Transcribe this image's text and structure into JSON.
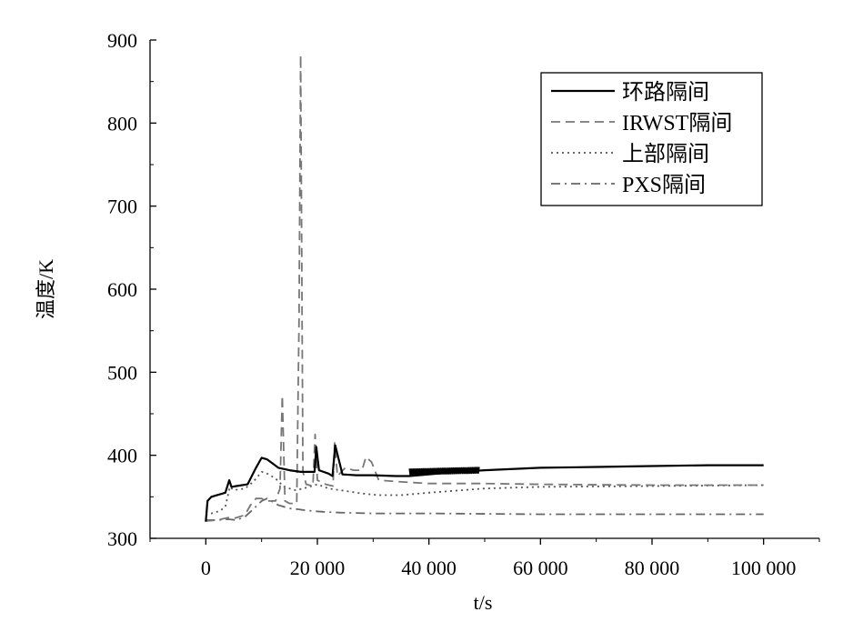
{
  "chart_data": {
    "type": "line",
    "title": "",
    "xlabel": "t/s",
    "ylabel": "温度/K",
    "xlim": [
      -10000,
      110000
    ],
    "ylim": [
      300,
      900
    ],
    "xticks": [
      0,
      20000,
      40000,
      60000,
      80000,
      100000
    ],
    "xtick_labels": [
      "0",
      "20 000",
      "40 000",
      "60 000",
      "80 000",
      "100 000"
    ],
    "yticks": [
      300,
      400,
      500,
      600,
      700,
      800,
      900
    ],
    "ytick_labels": [
      "300",
      "400",
      "500",
      "600",
      "700",
      "800",
      "900"
    ],
    "legend_position": "top-right",
    "grid": false,
    "series": [
      {
        "name": "环路隔间",
        "style": "solid",
        "color": "#000000",
        "x": [
          0,
          300,
          1000,
          3500,
          4200,
          4600,
          5500,
          7500,
          9000,
          10000,
          11000,
          13000,
          15000,
          16000,
          17000,
          19500,
          19800,
          20300,
          22000,
          22700,
          23200,
          24500,
          27000,
          30000,
          34000,
          36500,
          40000,
          45000,
          50000,
          60000,
          70000,
          80000,
          90000,
          100000
        ],
        "y": [
          320,
          345,
          350,
          355,
          370,
          362,
          363,
          365,
          385,
          397,
          395,
          385,
          382,
          381,
          380,
          380,
          410,
          382,
          378,
          375,
          412,
          377,
          376,
          376,
          375,
          375,
          377,
          380,
          382,
          385,
          386,
          387,
          388,
          388
        ]
      },
      {
        "name": "IRWST隔间",
        "style": "dashed",
        "color": "#777777",
        "x": [
          0,
          2000,
          4000,
          5000,
          7000,
          8000,
          9000,
          10000,
          11000,
          12500,
          13300,
          13700,
          14200,
          15000,
          16300,
          16700,
          17000,
          17400,
          18000,
          19200,
          19600,
          20000,
          21500,
          22800,
          23100,
          23600,
          25000,
          26500,
          28000,
          28700,
          29700,
          31000,
          35000,
          40000,
          50000,
          60000,
          80000,
          100000
        ],
        "y": [
          322,
          322,
          325,
          324,
          328,
          340,
          348,
          348,
          345,
          345,
          360,
          472,
          345,
          342,
          342,
          560,
          882,
          380,
          365,
          363,
          425,
          370,
          365,
          363,
          415,
          375,
          385,
          382,
          382,
          398,
          392,
          370,
          368,
          366,
          366,
          365,
          364,
          364
        ]
      },
      {
        "name": "上部隔间",
        "style": "dotted",
        "color": "#555555",
        "x": [
          0,
          1000,
          2500,
          3500,
          4300,
          5000,
          7000,
          8500,
          10000,
          11000,
          12500,
          14000,
          16000,
          17500,
          18500,
          20000,
          22000,
          25000,
          28000,
          31000,
          35000,
          40000,
          50000,
          60000,
          80000,
          100000
        ],
        "y": [
          328,
          330,
          333,
          338,
          362,
          358,
          360,
          368,
          380,
          378,
          372,
          362,
          358,
          360,
          362,
          365,
          360,
          357,
          354,
          352,
          352,
          355,
          360,
          362,
          363,
          364
        ]
      },
      {
        "name": "PXS隔间",
        "style": "dashdot",
        "color": "#666666",
        "x": [
          0,
          2000,
          4000,
          5500,
          7000,
          8500,
          10000,
          11000,
          12000,
          13000,
          14000,
          15000,
          16500,
          17500,
          19000,
          21000,
          24000,
          30000,
          40000,
          60000,
          80000,
          100000
        ],
        "y": [
          321,
          322,
          323,
          322,
          326,
          335,
          345,
          348,
          344,
          340,
          338,
          336,
          335,
          334,
          333,
          332,
          331,
          330,
          330,
          329,
          329,
          329
        ]
      }
    ],
    "annotations": [
      {
        "type": "oscillation",
        "series": "环路隔间",
        "x_start": 36500,
        "x_end": 49000,
        "y_center": 380,
        "amplitude": 4
      }
    ]
  }
}
